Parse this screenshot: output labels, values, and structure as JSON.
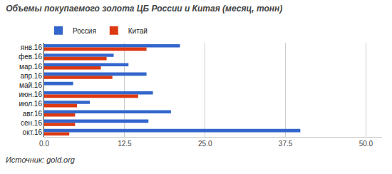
{
  "chart_data": {
    "type": "bar",
    "orientation": "horizontal",
    "title": "Объемы покупаемого золота ЦБ России и Китая (месяц, тонн)",
    "source": "Источник: gold.org",
    "categories": [
      "янв.16",
      "фев.16",
      "мар.16",
      "апр.16",
      "май.16",
      "июн.16",
      "июл.16",
      "авг.16",
      "сен.16",
      "окт.16"
    ],
    "series": [
      {
        "name": "Россия",
        "color": "#3366cc",
        "values": [
          21.1,
          10.8,
          13.1,
          15.9,
          4.5,
          16.9,
          7.1,
          19.7,
          16.2,
          39.8
        ]
      },
      {
        "name": "Китай",
        "color": "#dc3912",
        "values": [
          15.9,
          9.7,
          8.8,
          10.6,
          0,
          14.6,
          5.1,
          4.8,
          4.8,
          3.9
        ]
      }
    ],
    "xlim": [
      0,
      52.5
    ],
    "xticks": [
      {
        "value": 0,
        "label": "0.0"
      },
      12.5,
      {
        "value": 25,
        "label": "25.0"
      },
      37.5,
      {
        "value": 50,
        "label": "50.0"
      }
    ],
    "grid": true,
    "legend": "top left"
  }
}
